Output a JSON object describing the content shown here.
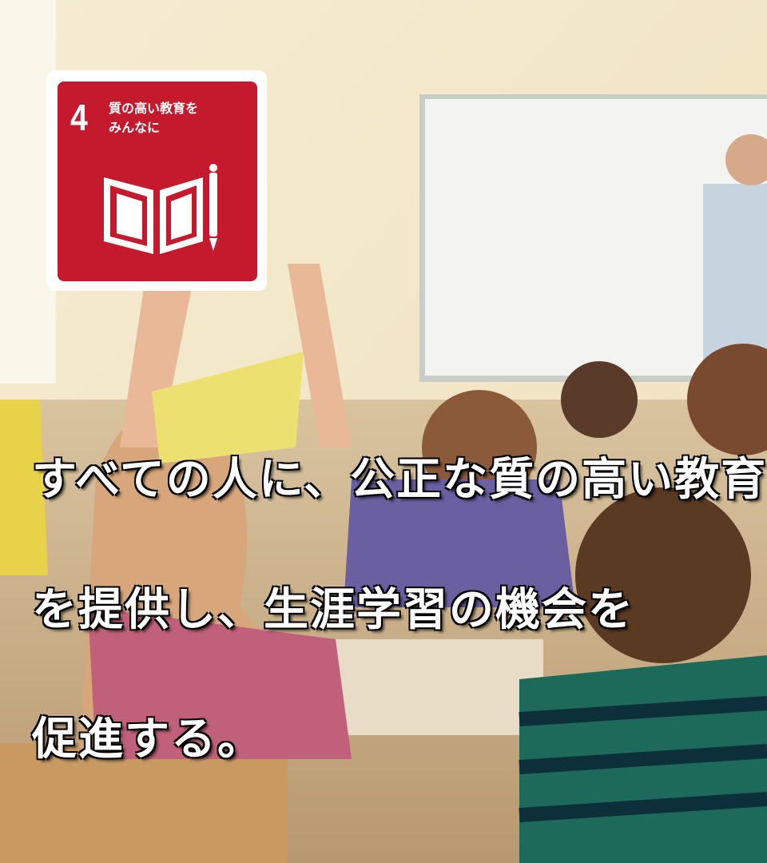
{
  "badge": {
    "number": "4",
    "label_lines": [
      "質の高い教育を",
      "みんなに"
    ]
  },
  "caption": {
    "lines": [
      "すべての人に、公正な質の高い教育",
      "を提供し、生涯学習の機会を",
      "促進する。"
    ]
  }
}
